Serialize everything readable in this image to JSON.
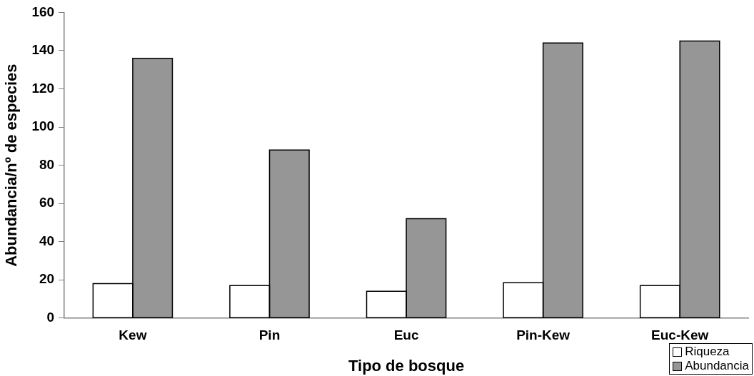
{
  "chart_data": {
    "type": "bar",
    "xlabel": "Tipo de bosque",
    "ylabel": "Abundancia/nº de especies",
    "categories": [
      "Kew",
      "Pin",
      "Euc",
      "Pin-Kew",
      "Euc-Kew"
    ],
    "series": [
      {
        "name": "Riqueza",
        "color": "#ffffff",
        "values": [
          18,
          17,
          14,
          18.5,
          17
        ]
      },
      {
        "name": "Abundancia",
        "color": "#969696",
        "values": [
          136,
          88,
          52,
          144,
          145
        ]
      }
    ],
    "ylim": [
      0,
      160
    ],
    "yticks": [
      0,
      20,
      40,
      60,
      80,
      100,
      120,
      140,
      160
    ],
    "grid": false,
    "legend": "bottom right"
  }
}
